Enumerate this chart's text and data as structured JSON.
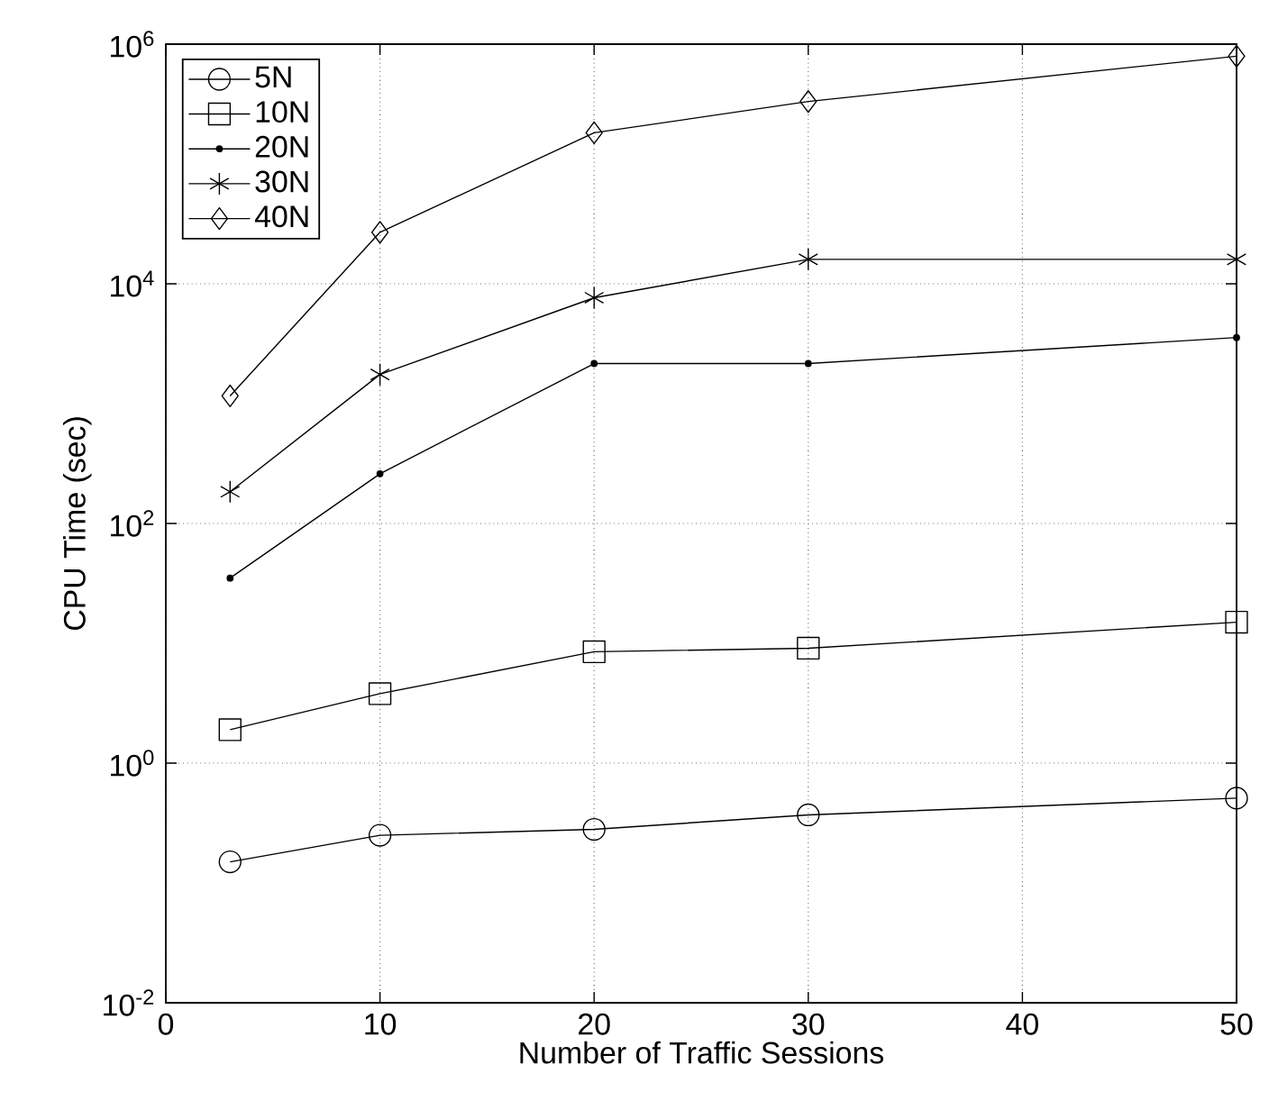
{
  "chart_data": {
    "type": "line",
    "xlabel": "Number of Traffic Sessions",
    "ylabel": "CPU Time (sec)",
    "x": [
      3,
      10,
      20,
      30,
      50
    ],
    "series": [
      {
        "name": "5N",
        "color": "#000000",
        "marker": "circle",
        "values": [
          0.15,
          0.25,
          0.28,
          0.37,
          0.51
        ]
      },
      {
        "name": "10N",
        "color": "#000000",
        "marker": "square",
        "values": [
          1.9,
          3.8,
          8.5,
          9.1,
          15
        ]
      },
      {
        "name": "20N",
        "color": "#000000",
        "marker": "point",
        "values": [
          35,
          260,
          2160,
          2160,
          3560
        ]
      },
      {
        "name": "30N",
        "color": "#000000",
        "marker": "cross",
        "values": [
          184,
          1750,
          7650,
          16000,
          16000
        ]
      },
      {
        "name": "40N",
        "color": "#000000",
        "marker": "diamond",
        "values": [
          1160,
          26900,
          182000,
          332000,
          794000
        ]
      }
    ],
    "log": "y",
    "xlim": [
      0,
      50
    ],
    "ylim": [
      0.01,
      1000000
    ],
    "xticks": [
      0,
      10,
      20,
      30,
      40,
      50
    ],
    "yticks": [
      {
        "value": 0.01,
        "label": "10$^{-2}$"
      },
      {
        "value": 1,
        "label": "10$^{0}$"
      },
      {
        "value": 100,
        "label": "10$^{2}$"
      },
      {
        "value": 10000,
        "label": "10$^{4}$"
      },
      {
        "value": 1000000,
        "label": "10$^{6}$"
      }
    ],
    "grid": true,
    "legend": "top left",
    "line_style": "solid"
  }
}
